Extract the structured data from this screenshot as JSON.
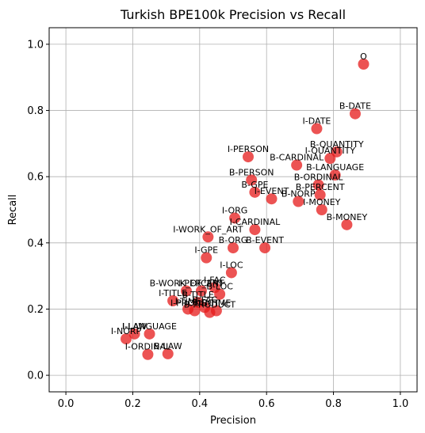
{
  "chart_data": {
    "type": "scatter",
    "title": "Turkish BPE100k Precision vs Recall",
    "xlabel": "Precision",
    "ylabel": "Recall",
    "xlim": [
      -0.05,
      1.05
    ],
    "ylim": [
      -0.05,
      1.05
    ],
    "xticks": [
      "0.0",
      "0.2",
      "0.4",
      "0.6",
      "0.8",
      "1.0"
    ],
    "yticks": [
      "0.0",
      "0.2",
      "0.4",
      "0.6",
      "0.8",
      "1.0"
    ],
    "grid": true,
    "color": "#e61a1a",
    "points": [
      {
        "label": "O",
        "x": 0.89,
        "y": 0.94
      },
      {
        "label": "B-DATE",
        "x": 0.865,
        "y": 0.79
      },
      {
        "label": "I-DATE",
        "x": 0.75,
        "y": 0.745
      },
      {
        "label": "B-QUANTITY",
        "x": 0.81,
        "y": 0.675
      },
      {
        "label": "I-QUANTITY",
        "x": 0.79,
        "y": 0.655
      },
      {
        "label": "I-PERSON",
        "x": 0.545,
        "y": 0.66
      },
      {
        "label": "B-CARDINAL",
        "x": 0.69,
        "y": 0.635
      },
      {
        "label": "B-LANGUAGE",
        "x": 0.805,
        "y": 0.605
      },
      {
        "label": "B-PERSON",
        "x": 0.555,
        "y": 0.59
      },
      {
        "label": "B-ORDINAL",
        "x": 0.755,
        "y": 0.575
      },
      {
        "label": "B-GPE",
        "x": 0.565,
        "y": 0.553
      },
      {
        "label": "B-PERCENT",
        "x": 0.76,
        "y": 0.545
      },
      {
        "label": "I-EVENT",
        "x": 0.615,
        "y": 0.533
      },
      {
        "label": "B-NORP",
        "x": 0.695,
        "y": 0.525
      },
      {
        "label": "I-MONEY",
        "x": 0.765,
        "y": 0.5
      },
      {
        "label": "I-ORG",
        "x": 0.505,
        "y": 0.475
      },
      {
        "label": "B-MONEY",
        "x": 0.84,
        "y": 0.455
      },
      {
        "label": "I-CARDINAL",
        "x": 0.565,
        "y": 0.44
      },
      {
        "label": "I-WORK_OF_ART",
        "x": 0.425,
        "y": 0.418
      },
      {
        "label": "B-ORG",
        "x": 0.5,
        "y": 0.385
      },
      {
        "label": "B-EVENT",
        "x": 0.595,
        "y": 0.385
      },
      {
        "label": "I-GPE",
        "x": 0.42,
        "y": 0.355
      },
      {
        "label": "I-LOC",
        "x": 0.495,
        "y": 0.31
      },
      {
        "label": "B-WORK_OF_ART",
        "x": 0.36,
        "y": 0.255
      },
      {
        "label": "I-FAC",
        "x": 0.445,
        "y": 0.265
      },
      {
        "label": "I-PERCENT",
        "x": 0.405,
        "y": 0.255
      },
      {
        "label": "B-LOC",
        "x": 0.46,
        "y": 0.245
      },
      {
        "label": "I-TITLE",
        "x": 0.32,
        "y": 0.225
      },
      {
        "label": "B-TITLE",
        "x": 0.395,
        "y": 0.22
      },
      {
        "label": "B-FAC",
        "x": 0.415,
        "y": 0.205
      },
      {
        "label": "I-TIME",
        "x": 0.365,
        "y": 0.2
      },
      {
        "label": "I-PRODUCT",
        "x": 0.385,
        "y": 0.195
      },
      {
        "label": "B-TIME",
        "x": 0.45,
        "y": 0.195
      },
      {
        "label": "B-PRODUCT",
        "x": 0.43,
        "y": 0.19
      },
      {
        "label": "I-LAW",
        "x": 0.205,
        "y": 0.125
      },
      {
        "label": "I-LANGUAGE",
        "x": 0.25,
        "y": 0.125
      },
      {
        "label": "I-NORP",
        "x": 0.18,
        "y": 0.11
      },
      {
        "label": "B-LAW",
        "x": 0.305,
        "y": 0.065
      },
      {
        "label": "I-ORDINAL",
        "x": 0.245,
        "y": 0.063
      }
    ]
  }
}
